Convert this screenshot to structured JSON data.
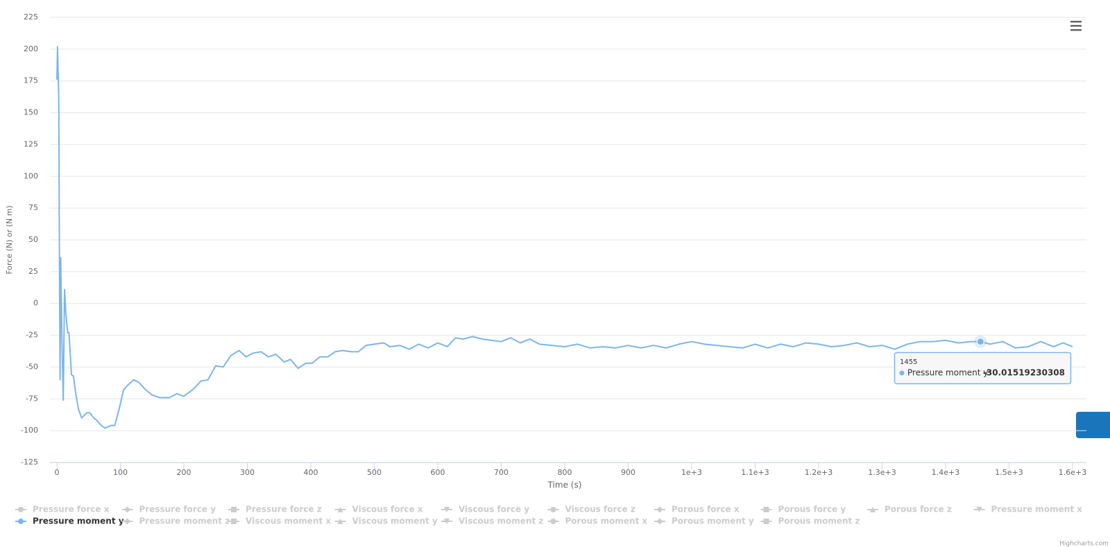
{
  "chart_data": {
    "type": "line",
    "y_title": "Force (N) or (N m)",
    "x_title": "Time (s)",
    "xlim": [
      0,
      1600
    ],
    "ylim": [
      -125,
      225
    ],
    "xticks": [
      0,
      100,
      200,
      300,
      400,
      500,
      600,
      700,
      800,
      900,
      {
        "value": 1000,
        "label": "1e+3"
      },
      {
        "value": 1100,
        "label": "1.1e+3"
      },
      {
        "value": 1200,
        "label": "1.2e+3"
      },
      {
        "value": 1300,
        "label": "1.3e+3"
      },
      {
        "value": 1400,
        "label": "1.4e+3"
      },
      {
        "value": 1500,
        "label": "1.5e+3"
      },
      {
        "value": 1600,
        "label": "1.6e+3"
      }
    ],
    "yticks": [
      -125,
      -100,
      -75,
      -50,
      -25,
      0,
      25,
      50,
      75,
      100,
      125,
      150,
      175,
      200,
      225
    ],
    "grid": true,
    "legend_hidden_color": "#cccccc",
    "x": [
      0,
      1,
      3,
      4,
      5,
      6,
      7,
      8,
      10,
      12,
      14,
      17,
      19,
      23,
      26,
      30,
      34,
      39,
      47,
      52,
      58,
      63,
      70,
      76,
      85,
      91,
      98,
      105,
      112,
      121,
      129,
      140,
      150,
      162,
      177,
      189,
      200,
      216,
      227,
      238,
      250,
      262,
      274,
      287,
      298,
      309,
      322,
      333,
      345,
      358,
      368,
      380,
      392,
      402,
      414,
      427,
      438,
      450,
      464,
      475,
      487,
      500,
      515,
      525,
      540,
      555,
      570,
      585,
      600,
      615,
      628,
      640,
      655,
      670,
      685,
      700,
      715,
      730,
      745,
      760,
      780,
      800,
      820,
      840,
      860,
      880,
      900,
      920,
      940,
      960,
      980,
      1000,
      1020,
      1040,
      1060,
      1080,
      1100,
      1120,
      1140,
      1160,
      1180,
      1200,
      1220,
      1240,
      1260,
      1280,
      1300,
      1320,
      1340,
      1360,
      1380,
      1400,
      1420,
      1440,
      1455,
      1470,
      1490,
      1510,
      1530,
      1550,
      1570,
      1585,
      1600
    ],
    "series": [
      {
        "name": "Pressure force x",
        "visible": false
      },
      {
        "name": "Pressure force y",
        "visible": false
      },
      {
        "name": "Pressure force z",
        "visible": false
      },
      {
        "name": "Viscous force x",
        "visible": false
      },
      {
        "name": "Viscous force y",
        "visible": false
      },
      {
        "name": "Viscous force z",
        "visible": false
      },
      {
        "name": "Porous force x",
        "visible": false
      },
      {
        "name": "Porous force y",
        "visible": false
      },
      {
        "name": "Porous force z",
        "visible": false
      },
      {
        "name": "Pressure moment x",
        "visible": false
      },
      {
        "name": "Pressure moment y",
        "visible": true,
        "color": "#7cb5ec",
        "values": [
          176,
          202,
          160,
          30,
          -60,
          36,
          4,
          -30,
          -76,
          11,
          -7,
          -23,
          -23,
          -56,
          -57,
          -72,
          -83,
          -90,
          -86,
          -86,
          -90,
          -92,
          -96,
          -98,
          -96,
          -96,
          -83,
          -68,
          -64,
          -60,
          -62,
          -68,
          -72,
          -74,
          -74,
          -71,
          -73,
          -67,
          -61,
          -60,
          -49,
          -50,
          -41,
          -37,
          -42,
          -39,
          -38,
          -42,
          -40,
          -46,
          -44,
          -51,
          -47,
          -47,
          -42,
          -42,
          -38,
          -37,
          -38,
          -38,
          -33,
          -32,
          -31,
          -34,
          -33,
          -36,
          -32,
          -35,
          -31,
          -34,
          -27,
          -28,
          -26,
          -28,
          -29,
          -30,
          -27,
          -31,
          -28,
          -32,
          -33,
          -34,
          -32,
          -35,
          -34,
          -35,
          -33,
          -35,
          -33,
          -35,
          -32,
          -30,
          -32,
          -33,
          -34,
          -35,
          -32,
          -35,
          -32,
          -34,
          -31,
          -32,
          -34,
          -33,
          -31,
          -34,
          -33,
          -36,
          -32,
          -30,
          -30,
          -29,
          -31,
          -30,
          -30.01519230308,
          -32,
          -30,
          -35,
          -34,
          -30,
          -34,
          -31,
          -34
        ]
      },
      {
        "name": "Pressure moment z",
        "visible": false
      },
      {
        "name": "Viscous moment x",
        "visible": false
      },
      {
        "name": "Viscous moment y",
        "visible": false
      },
      {
        "name": "Viscous moment z",
        "visible": false
      },
      {
        "name": "Porous moment x",
        "visible": false
      },
      {
        "name": "Porous moment y",
        "visible": false
      },
      {
        "name": "Porous moment z",
        "visible": false
      }
    ],
    "tooltip": {
      "x": 1455,
      "label": "Pressure moment y:",
      "value": -30.01519230308
    },
    "credits": "Highcharts.com"
  }
}
